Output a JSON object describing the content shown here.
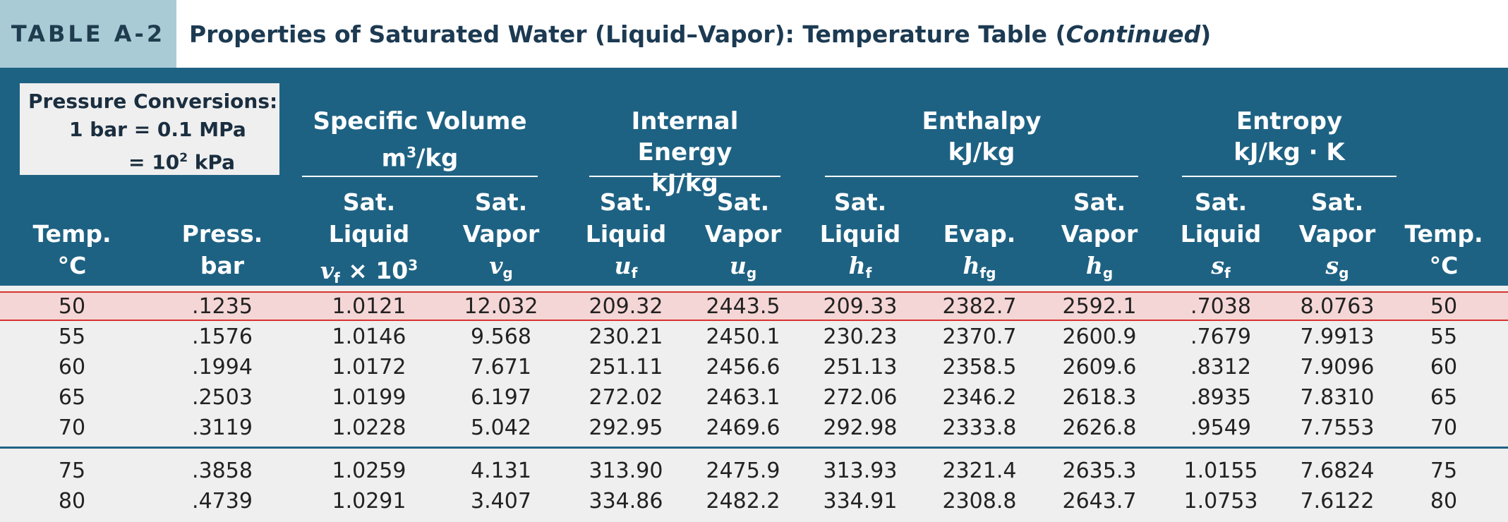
{
  "title_tag": "TABLE A-2",
  "title": {
    "main": "Properties of Saturated Water (Liquid–Vapor): Temperature Table (",
    "italic": "Continued",
    "close": ")"
  },
  "conversions": {
    "heading": "Pressure Conversions:",
    "line1": "1 bar = 0.1 MPa",
    "line2_pre": "= 10",
    "line2_sup": "2",
    "line2_post": " kPa"
  },
  "groups": [
    {
      "name": "Specific Volume",
      "unit_pre": "m",
      "unit_sup": "3",
      "unit_post": "/kg"
    },
    {
      "name": "Internal Energy",
      "unit": "kJ/kg"
    },
    {
      "name": "Enthalpy",
      "unit": "kJ/kg"
    },
    {
      "name": "Entropy",
      "unit": "kJ/kg · K"
    }
  ],
  "columns": [
    {
      "l1": "",
      "l2": "Temp.",
      "l3": "°C"
    },
    {
      "l1": "",
      "l2": "Press.",
      "l3": "bar"
    },
    {
      "l1": "Sat.",
      "l2": "Liquid",
      "sym": "v",
      "sub": "f",
      "suffix": " × 10",
      "sup": "3"
    },
    {
      "l1": "Sat.",
      "l2": "Vapor",
      "sym": "v",
      "sub": "g"
    },
    {
      "l1": "Sat.",
      "l2": "Liquid",
      "sym": "u",
      "sub": "f"
    },
    {
      "l1": "Sat.",
      "l2": "Vapor",
      "sym": "u",
      "sub": "g"
    },
    {
      "l1": "Sat.",
      "l2": "Liquid",
      "sym": "h",
      "sub": "f"
    },
    {
      "l1": "",
      "l2": "Evap.",
      "sym": "h",
      "sub": "fg"
    },
    {
      "l1": "Sat.",
      "l2": "Vapor",
      "sym": "h",
      "sub": "g"
    },
    {
      "l1": "Sat.",
      "l2": "Liquid",
      "sym": "s",
      "sub": "f"
    },
    {
      "l1": "Sat.",
      "l2": "Vapor",
      "sym": "s",
      "sub": "g"
    },
    {
      "l1": "",
      "l2": "Temp.",
      "l3": "°C"
    }
  ],
  "rows": [
    [
      "50",
      ".1235",
      "1.0121",
      "12.032",
      "209.32",
      "2443.5",
      "209.33",
      "2382.7",
      "2592.1",
      ".7038",
      "8.0763",
      "50"
    ],
    [
      "55",
      ".1576",
      "1.0146",
      "9.568",
      "230.21",
      "2450.1",
      "230.23",
      "2370.7",
      "2600.9",
      ".7679",
      "7.9913",
      "55"
    ],
    [
      "60",
      ".1994",
      "1.0172",
      "7.671",
      "251.11",
      "2456.6",
      "251.13",
      "2358.5",
      "2609.6",
      ".8312",
      "7.9096",
      "60"
    ],
    [
      "65",
      ".2503",
      "1.0199",
      "6.197",
      "272.02",
      "2463.1",
      "272.06",
      "2346.2",
      "2618.3",
      ".8935",
      "7.8310",
      "65"
    ],
    [
      "70",
      ".3119",
      "1.0228",
      "5.042",
      "292.95",
      "2469.6",
      "292.98",
      "2333.8",
      "2626.8",
      ".9549",
      "7.7553",
      "70"
    ],
    [
      "75",
      ".3858",
      "1.0259",
      "4.131",
      "313.90",
      "2475.9",
      "313.93",
      "2321.4",
      "2635.3",
      "1.0155",
      "7.6824",
      "75"
    ],
    [
      "80",
      ".4739",
      "1.0291",
      "3.407",
      "334.86",
      "2482.2",
      "334.91",
      "2308.8",
      "2643.7",
      "1.0753",
      "7.6122",
      "80"
    ]
  ],
  "highlighted_row": 0,
  "colors": {
    "header_bg": "#1e6283",
    "highlight_bg": "#f5d6d6",
    "highlight_border": "#d7342f",
    "tag_bg": "#a9cbd6"
  }
}
